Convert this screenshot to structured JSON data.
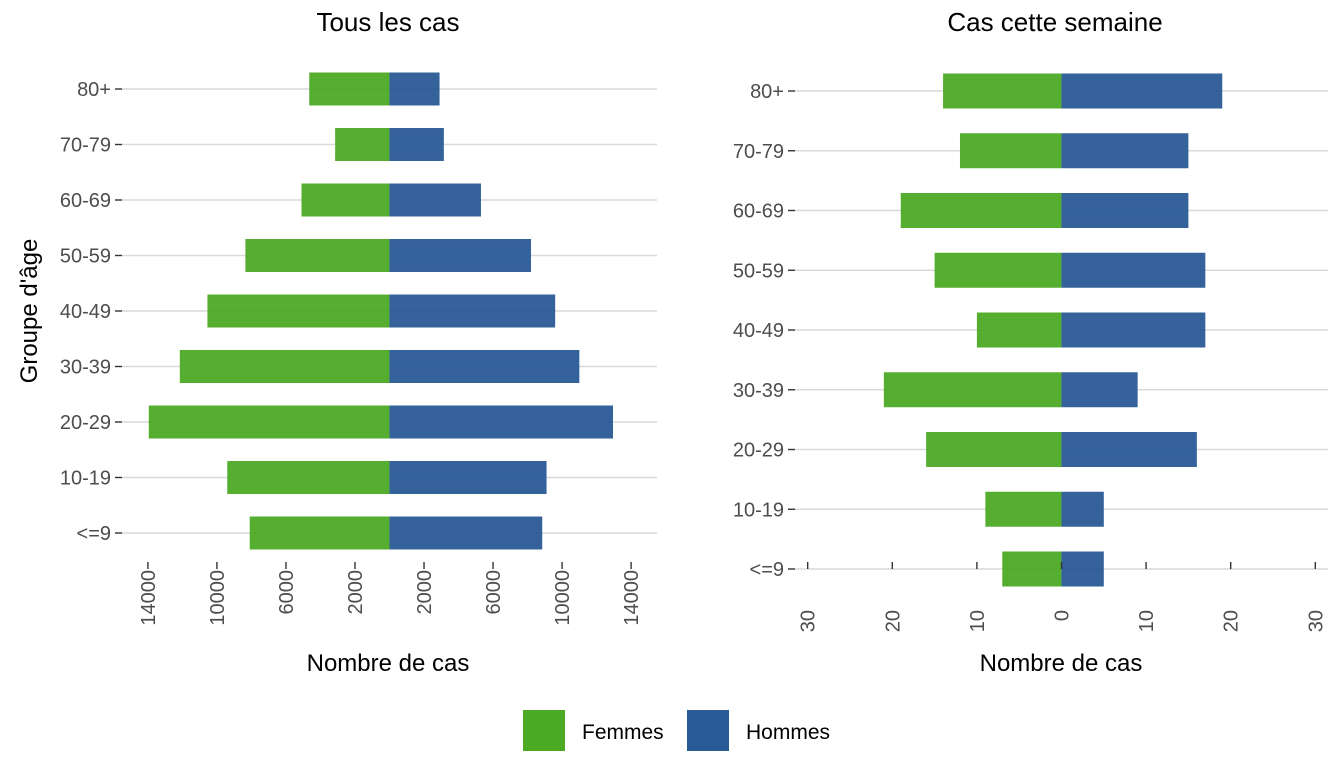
{
  "chart_data": [
    {
      "type": "bar",
      "orientation": "horizontal",
      "layout": "population-pyramid",
      "title": "Tous les cas",
      "xlabel": "Nombre de cas",
      "ylabel": "Groupe d'âge",
      "categories": [
        "<=9",
        "10-19",
        "20-29",
        "30-39",
        "40-49",
        "50-59",
        "60-69",
        "70-79",
        "80+"
      ],
      "series": [
        {
          "name": "Femmes",
          "values": [
            8100,
            9400,
            13950,
            12150,
            10550,
            8350,
            5100,
            3150,
            4650
          ]
        },
        {
          "name": "Hommes",
          "values": [
            8850,
            9100,
            12950,
            11000,
            9600,
            8200,
            5300,
            3150,
            2900
          ]
        }
      ],
      "xlim": [
        -15500,
        15500
      ],
      "xticks": [
        -14000,
        -10000,
        -6000,
        -2000,
        2000,
        6000,
        10000,
        14000
      ],
      "xtick_labels": [
        "14000",
        "10000",
        "6000",
        "2000",
        "2000",
        "6000",
        "10000",
        "14000"
      ],
      "grid": "horizontal"
    },
    {
      "type": "bar",
      "orientation": "horizontal",
      "layout": "population-pyramid",
      "title": "Cas cette semaine",
      "xlabel": "Nombre de cas",
      "ylabel": "",
      "categories": [
        "<=9",
        "10-19",
        "20-29",
        "30-39",
        "40-49",
        "50-59",
        "60-69",
        "70-79",
        "80+"
      ],
      "series": [
        {
          "name": "Femmes",
          "values": [
            7,
            9,
            16,
            21,
            10,
            15,
            19,
            12,
            14
          ]
        },
        {
          "name": "Hommes",
          "values": [
            5,
            5,
            16,
            9,
            17,
            17,
            15,
            15,
            19
          ]
        }
      ],
      "xlim": [
        -31.5,
        31.5
      ],
      "xticks": [
        -30,
        -20,
        -10,
        0,
        10,
        20,
        30
      ],
      "xtick_labels": [
        "30",
        "20",
        "10",
        "0",
        "10",
        "20",
        "30"
      ],
      "grid": "horizontal"
    }
  ],
  "legend": {
    "position": "bottom",
    "items": [
      {
        "label": "Femmes",
        "color": "#4daa25"
      },
      {
        "label": "Hommes",
        "color": "#2a5a96"
      }
    ]
  },
  "colors": {
    "femmes": "#4daa25",
    "hommes": "#2a5a96",
    "grid": "#d9d9d9",
    "tick_text": "#4d4d4d"
  }
}
